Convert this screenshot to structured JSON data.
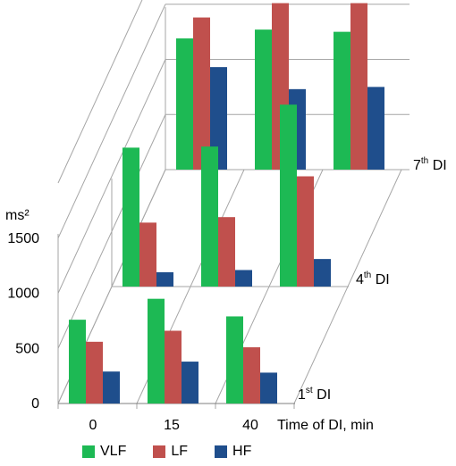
{
  "chart_data": {
    "type": "bar",
    "title": "",
    "ylabel": "ms²",
    "xlabel": "Time of DI, min",
    "ylim": [
      0,
      2000
    ],
    "yticks": [
      0,
      500,
      1000,
      1500
    ],
    "categories": [
      "0",
      "15",
      "40"
    ],
    "groups": [
      {
        "label": "1st DI",
        "label_main": "1",
        "label_sup": "st",
        "label_tail": " DI",
        "series": [
          {
            "name": "VLF",
            "values": [
              760,
              950,
              790
            ]
          },
          {
            "name": "LF",
            "values": [
              560,
              660,
              510
            ]
          },
          {
            "name": "HF",
            "values": [
              290,
              380,
              280
            ]
          }
        ]
      },
      {
        "label": "4th DI",
        "label_main": "4",
        "label_sup": "th",
        "label_tail": " DI",
        "series": [
          {
            "name": "VLF",
            "values": [
              1260,
              1270,
              1650
            ]
          },
          {
            "name": "LF",
            "values": [
              580,
              630,
              1000
            ]
          },
          {
            "name": "HF",
            "values": [
              130,
              150,
              250
            ]
          }
        ]
      },
      {
        "label": "7th DI",
        "label_main": "7",
        "label_sup": "th",
        "label_tail": " DI",
        "series": [
          {
            "name": "VLF",
            "values": [
              1190,
              1270,
              1250
            ]
          },
          {
            "name": "LF",
            "values": [
              1380,
              1510,
              1510
            ]
          },
          {
            "name": "HF",
            "values": [
              930,
              730,
              750
            ]
          }
        ]
      }
    ],
    "legend": [
      {
        "name": "VLF",
        "color": "#1DB954"
      },
      {
        "name": "LF",
        "color": "#C0504D"
      },
      {
        "name": "HF",
        "color": "#1F4E8C"
      }
    ],
    "legend_position": "bottom",
    "grid": true
  }
}
